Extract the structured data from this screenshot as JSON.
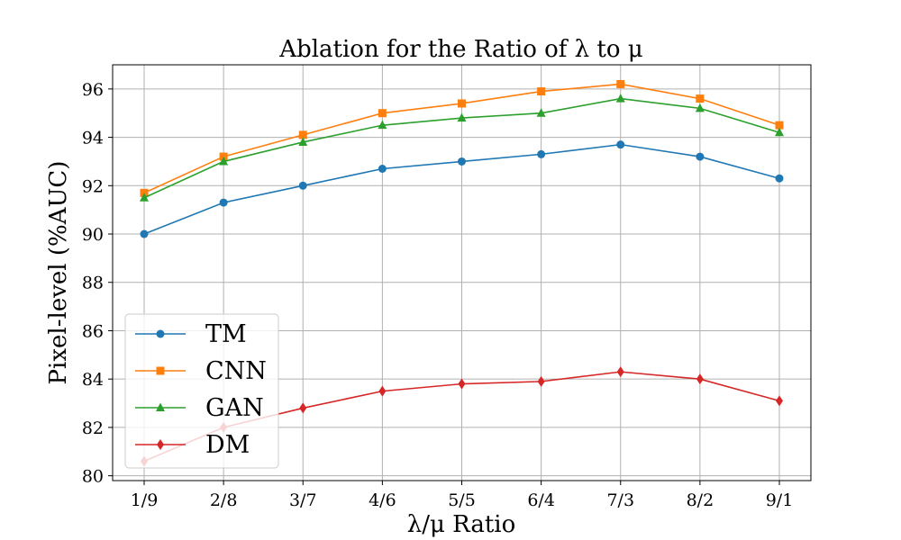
{
  "chart_data": {
    "type": "line",
    "title": "Ablation for the Ratio of λ to μ",
    "xlabel": "λ/μ Ratio",
    "ylabel": "Pixel-level (%AUC)",
    "categories": [
      "1/9",
      "2/8",
      "3/7",
      "4/6",
      "5/5",
      "6/4",
      "7/3",
      "8/2",
      "9/1"
    ],
    "ylim": [
      79.8,
      97.0
    ],
    "yticks": [
      80,
      82,
      84,
      86,
      88,
      90,
      92,
      94,
      96
    ],
    "grid": true,
    "legend_position": "lower-left",
    "series": [
      {
        "name": "TM",
        "color": "#1f77b4",
        "marker": "circle",
        "values": [
          90.0,
          91.3,
          92.0,
          92.7,
          93.0,
          93.3,
          93.7,
          93.2,
          92.3
        ]
      },
      {
        "name": "CNN",
        "color": "#ff7f0e",
        "marker": "square",
        "values": [
          91.7,
          93.2,
          94.1,
          95.0,
          95.4,
          95.9,
          96.2,
          95.6,
          94.5
        ]
      },
      {
        "name": "GAN",
        "color": "#2ca02c",
        "marker": "triangle",
        "values": [
          91.5,
          93.0,
          93.8,
          94.5,
          94.8,
          95.0,
          95.6,
          95.2,
          94.2
        ]
      },
      {
        "name": "DM",
        "color": "#d62728",
        "marker": "diamond",
        "values": [
          80.6,
          82.0,
          82.8,
          83.5,
          83.8,
          83.9,
          84.3,
          84.0,
          83.1
        ]
      }
    ]
  }
}
